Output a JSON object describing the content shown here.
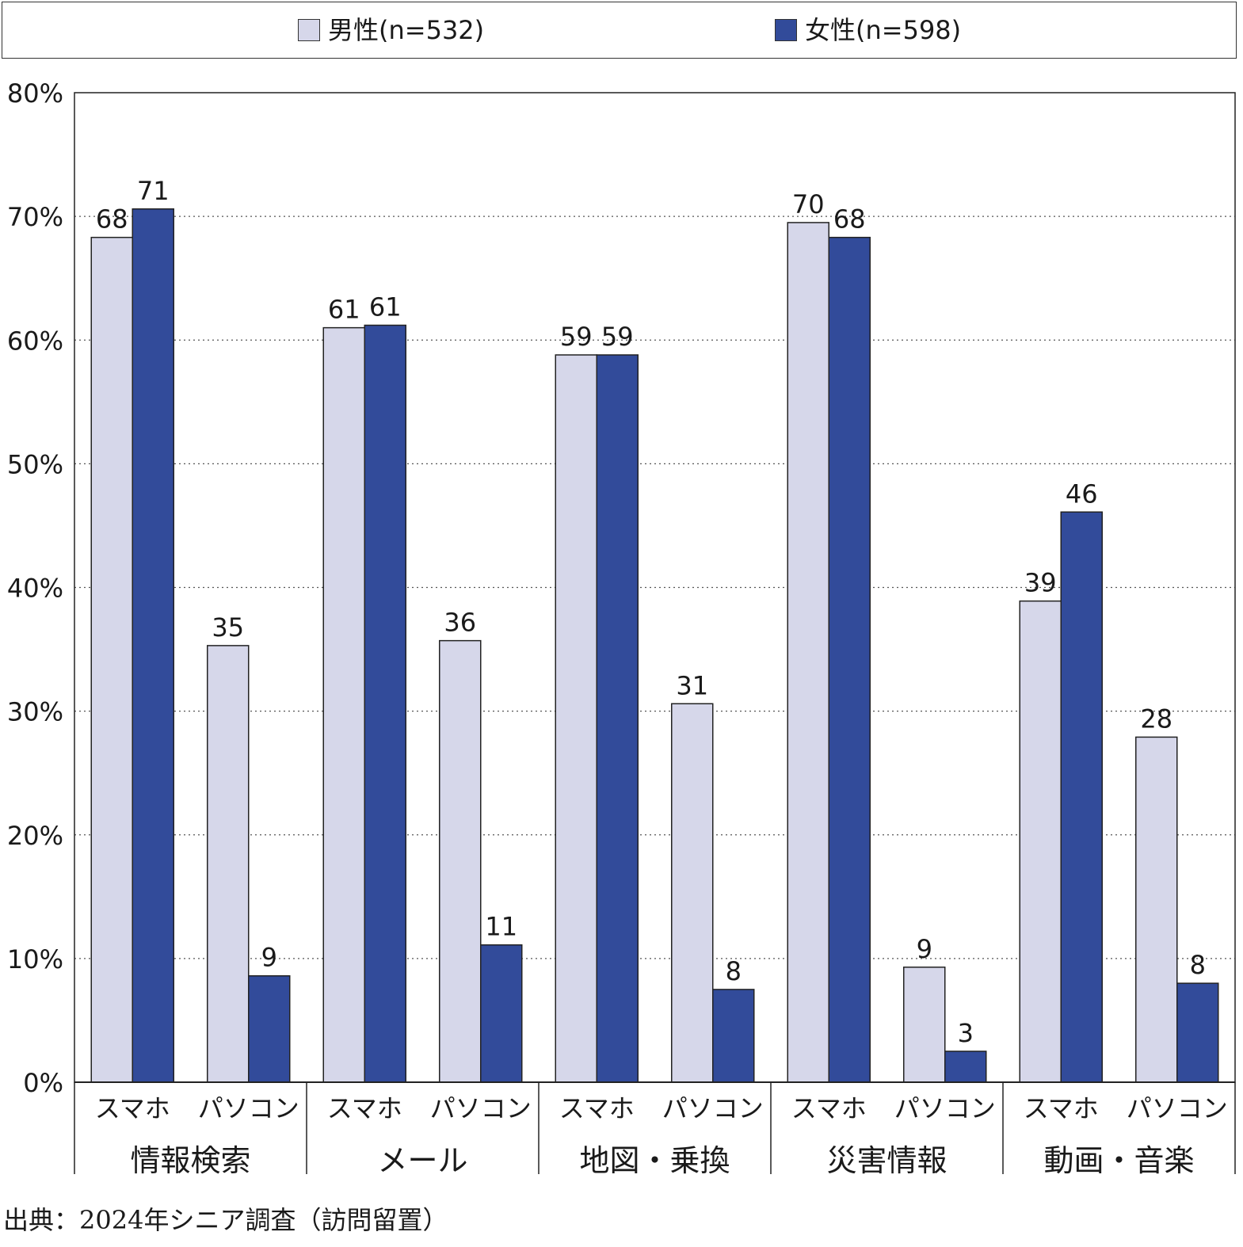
{
  "legend": {
    "male_label": "男性(n=532)",
    "female_label": "女性(n=598)",
    "male_color": "#d6d7ea",
    "female_color": "#324b9a"
  },
  "source": "出典：2024年シニア調査（訪問留置）",
  "chart_data": {
    "type": "bar",
    "ylim": [
      0,
      80
    ],
    "y_ticks": [
      "0%",
      "10%",
      "20%",
      "30%",
      "40%",
      "50%",
      "60%",
      "70%",
      "80%"
    ],
    "grid": "dotted-horizontal",
    "legend_position": "top",
    "groups": [
      {
        "label": "情報検索",
        "subcategories": [
          "スマホ",
          "パソコン"
        ]
      },
      {
        "label": "メール",
        "subcategories": [
          "スマホ",
          "パソコン"
        ]
      },
      {
        "label": "地図・乗換",
        "subcategories": [
          "スマホ",
          "パソコン"
        ]
      },
      {
        "label": "災害情報",
        "subcategories": [
          "スマホ",
          "パソコン"
        ]
      },
      {
        "label": "動画・音楽",
        "subcategories": [
          "スマホ",
          "パソコン"
        ]
      }
    ],
    "series": [
      {
        "name": "男性(n=532)",
        "color": "#d6d7ea",
        "values": [
          68.3,
          35.3,
          61.0,
          35.7,
          58.8,
          30.6,
          69.5,
          9.3,
          38.9,
          27.9
        ],
        "labels": [
          "68",
          "35",
          "61",
          "36",
          "59",
          "31",
          "70",
          "9",
          "39",
          "28"
        ]
      },
      {
        "name": "女性(n=598)",
        "color": "#324b9a",
        "values": [
          70.6,
          8.6,
          61.2,
          11.1,
          58.8,
          7.5,
          68.3,
          2.5,
          46.1,
          8.0
        ],
        "labels": [
          "71",
          "9",
          "61",
          "11",
          "59",
          "8",
          "68",
          "3",
          "46",
          "8"
        ]
      }
    ]
  }
}
